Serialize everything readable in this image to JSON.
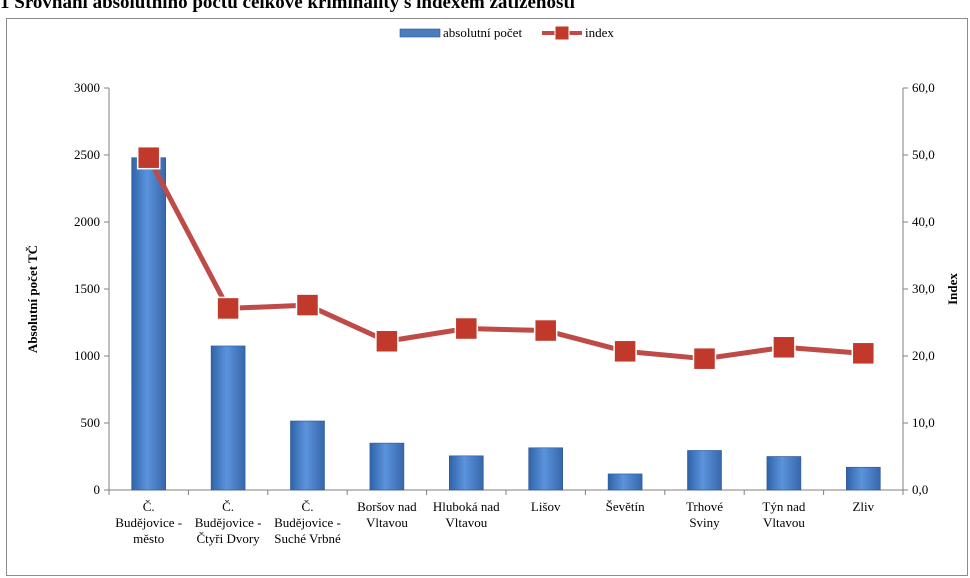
{
  "page": {
    "title": "1 Srovnání absolutního počtu celkové kriminality s indexem zatíženosti"
  },
  "chart_data": {
    "type": "bar",
    "title": "",
    "categories": [
      [
        "Č.",
        "Budějovice -",
        "město"
      ],
      [
        "Č.",
        "Budějovice -",
        "Čtyři Dvory"
      ],
      [
        "Č.",
        "Budějovice -",
        "Suché Vrbné"
      ],
      [
        "Boršov nad",
        "Vltavou"
      ],
      [
        "Hluboká nad",
        "Vltavou"
      ],
      [
        "Lišov"
      ],
      [
        "Ševětín"
      ],
      [
        "Trhové",
        "Sviny"
      ],
      [
        "Týn nad",
        "Vltavou"
      ],
      [
        "Zliv"
      ]
    ],
    "series": [
      {
        "name": "absolutní počet",
        "type": "bar",
        "axis": "left",
        "color": "#4a7ebb",
        "values": [
          2480,
          1075,
          515,
          350,
          255,
          315,
          120,
          295,
          250,
          170
        ]
      },
      {
        "name": "index",
        "type": "line",
        "axis": "right",
        "color": "#c0504d",
        "values": [
          49.6,
          27.1,
          27.6,
          22.2,
          24.1,
          23.8,
          20.7,
          19.6,
          21.3,
          20.4
        ]
      }
    ],
    "ylabel": "Absolutní počet TČ",
    "y2label": "Index",
    "ylim": [
      0,
      3000
    ],
    "y2lim": [
      0,
      60
    ],
    "yticks": [
      "0",
      "500",
      "1000",
      "1500",
      "2000",
      "2500",
      "3000"
    ],
    "y2ticks": [
      "0,0",
      "10,0",
      "20,0",
      "30,0",
      "40,0",
      "50,0",
      "60,0"
    ],
    "legend": "top-center",
    "grid": false
  }
}
